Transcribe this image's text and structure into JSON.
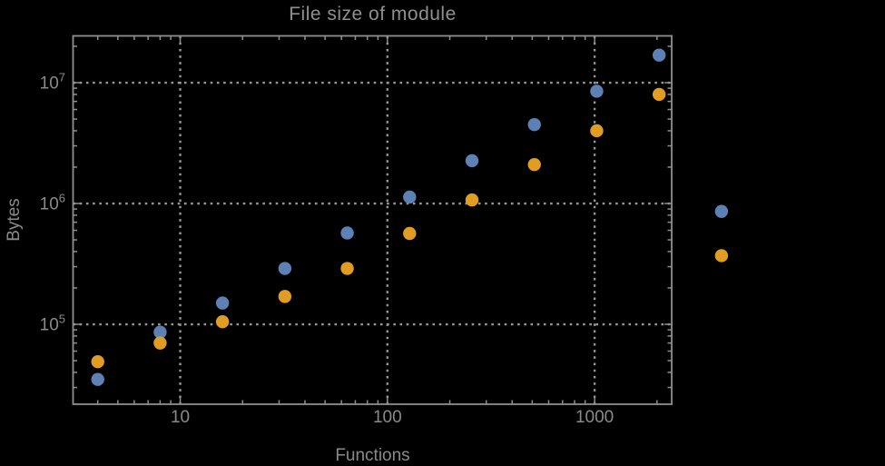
{
  "page": {
    "background": "#000000"
  },
  "chart": {
    "title": "File size of module",
    "xlabel": "Functions",
    "ylabel": "Bytes"
  },
  "chart_data": {
    "type": "scatter",
    "title": "File size of module",
    "xlabel": "Functions",
    "ylabel": "Bytes",
    "x_scale": "log",
    "y_scale": "log",
    "xlim": [
      3.04,
      2355
    ],
    "ylim": [
      21800,
      24400000
    ],
    "grid": "dotted",
    "legend": "none",
    "x_major_ticks": [
      10,
      100,
      1000
    ],
    "x_tick_labels": [
      "10",
      "100",
      "1000"
    ],
    "y_major_ticks": [
      100000,
      1000000,
      10000000
    ],
    "y_tick_labels": [
      "10^5",
      "10^6",
      "10^7"
    ],
    "y_tick_base": "10",
    "y_tick_exponents": [
      "5",
      "6",
      "7"
    ],
    "x": [
      4,
      8,
      16,
      32,
      64,
      128,
      256,
      512,
      1024,
      2048,
      4096
    ],
    "series": [
      {
        "name": "blue",
        "color": "#5e81b5",
        "values": [
          35000,
          86000,
          150000,
          290000,
          570000,
          1130000,
          2260000,
          4500000,
          8500000,
          16900000,
          860000
        ]
      },
      {
        "name": "orange",
        "color": "#e19c24",
        "values": [
          49000,
          70000,
          105000,
          170000,
          290000,
          565000,
          1070000,
          2100000,
          4000000,
          8000000,
          370000
        ]
      }
    ],
    "colors": {
      "frame": "#8f8f8f",
      "grid": "#979797",
      "text": "#8a8a8a",
      "background": "#000000"
    }
  }
}
